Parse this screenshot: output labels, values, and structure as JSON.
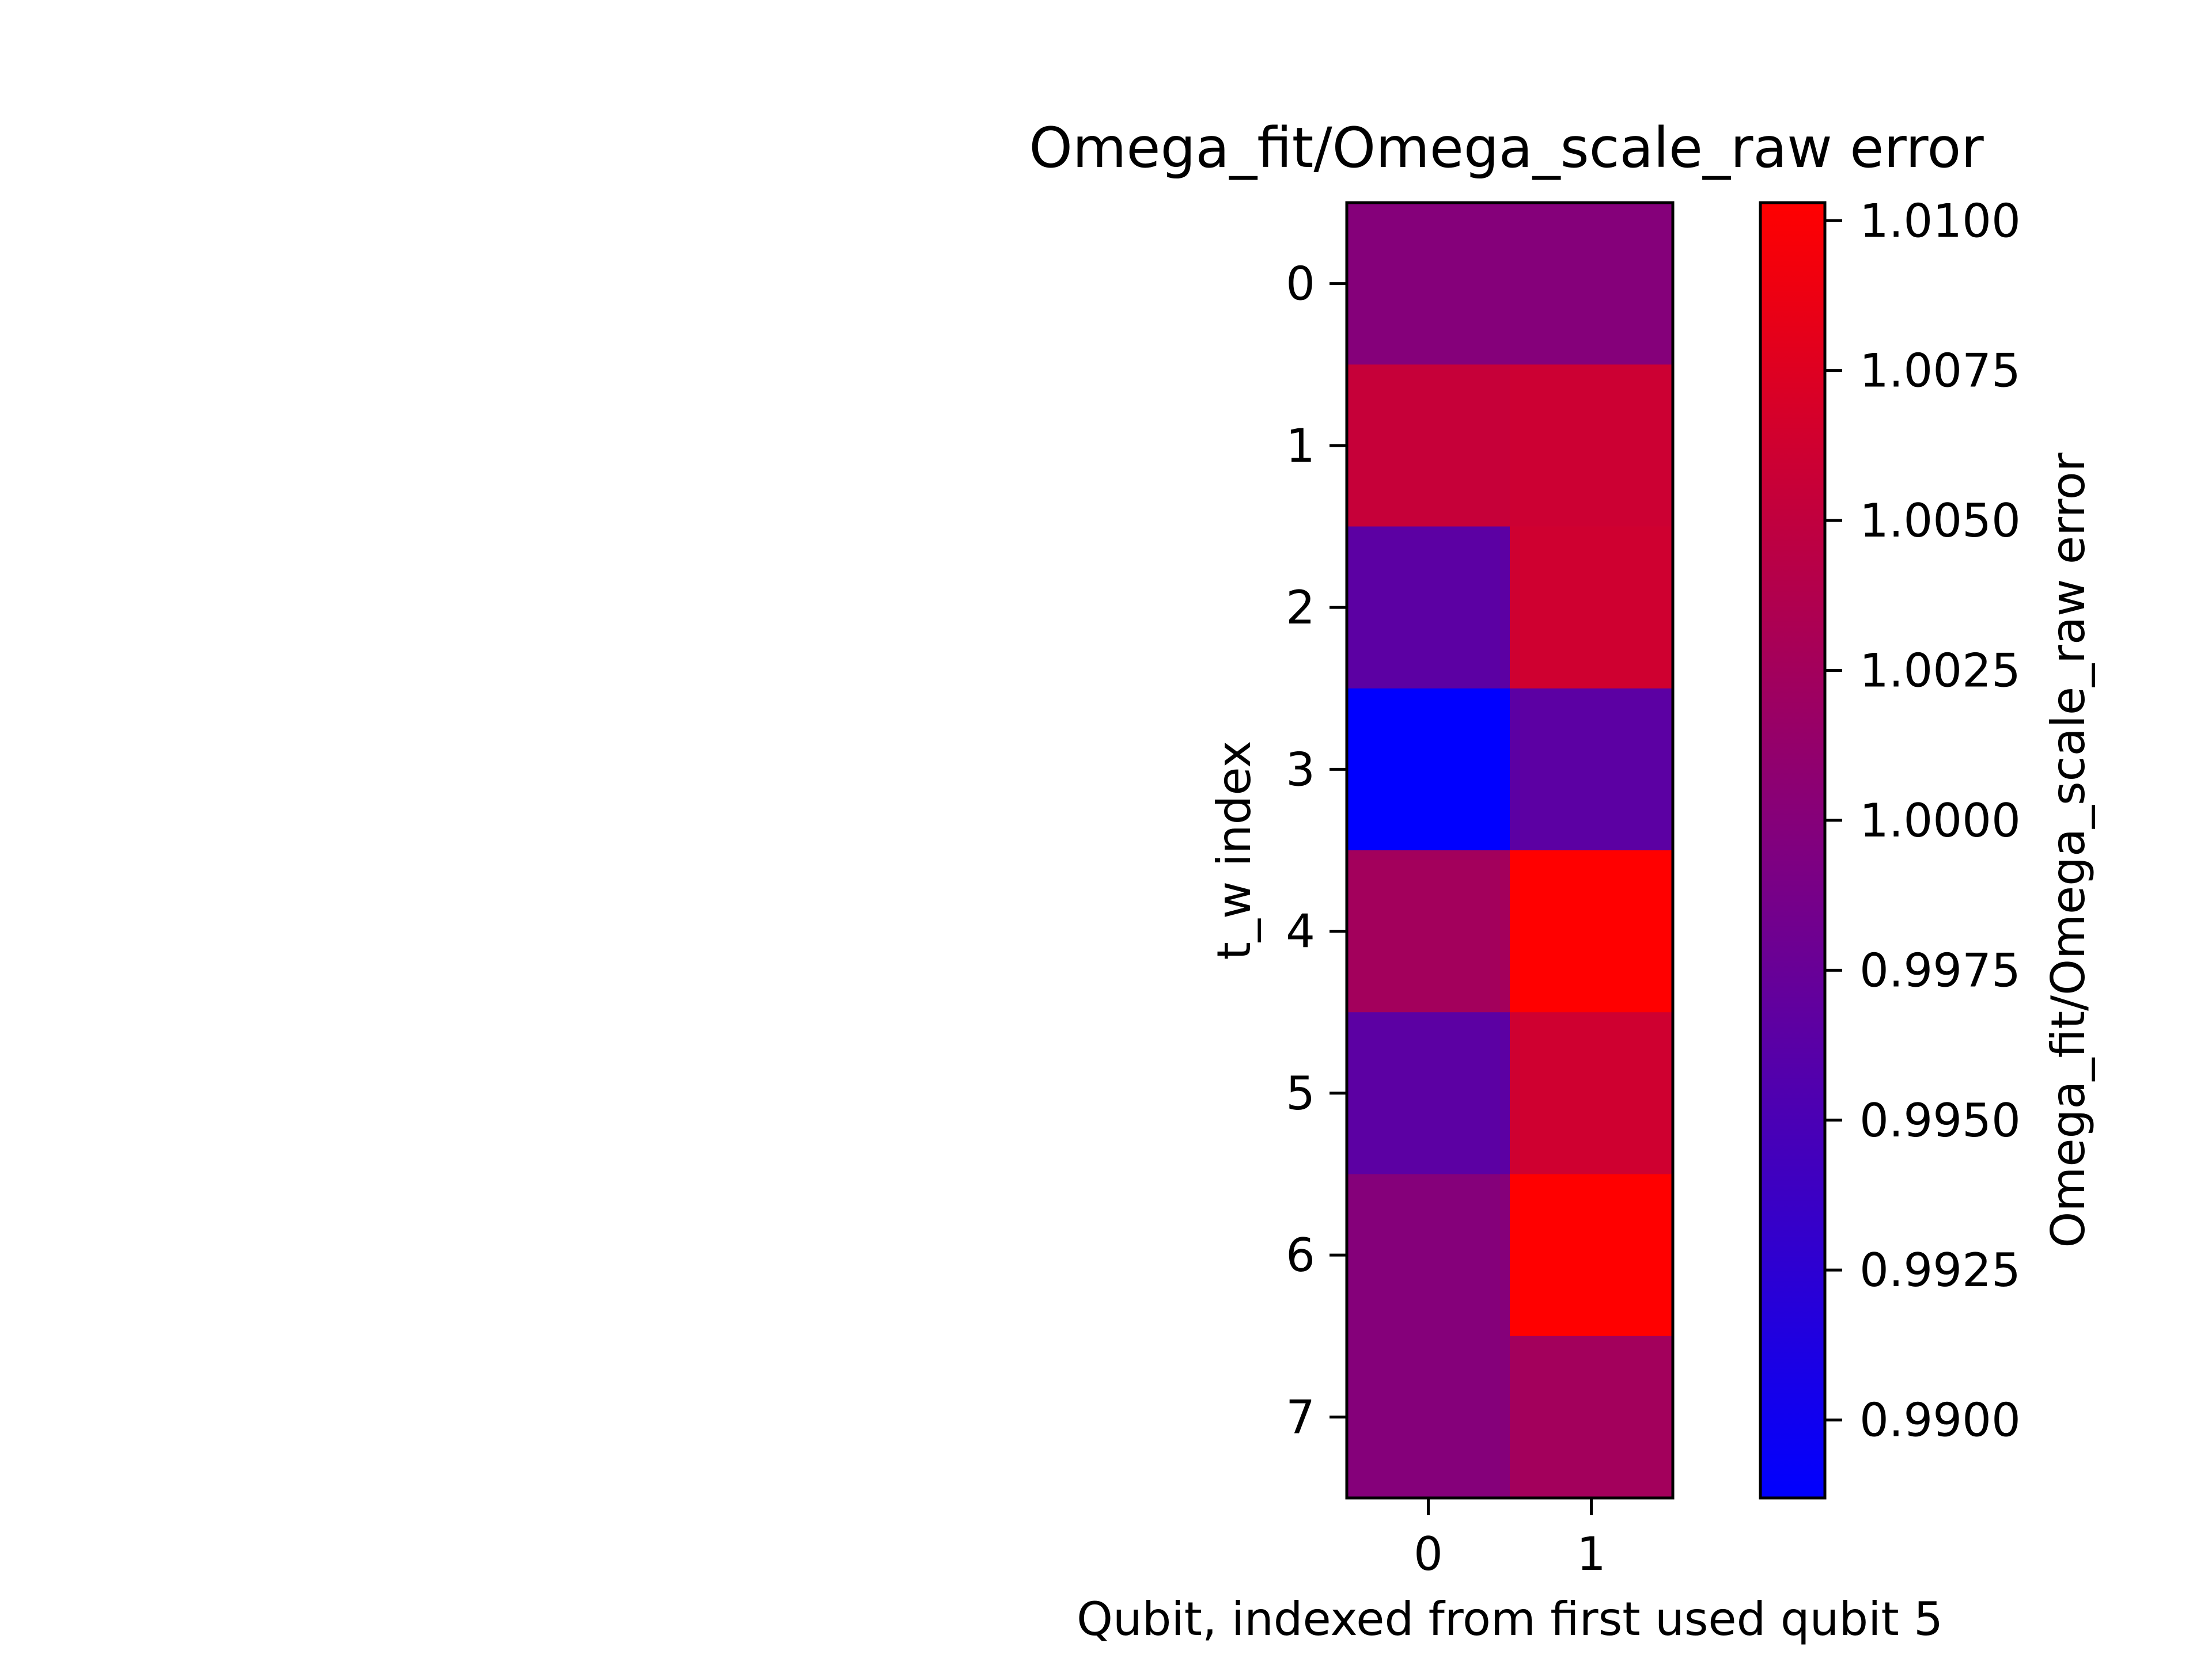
{
  "chart_data": {
    "type": "heatmap",
    "title": "Omega_fit/Omega_scale_raw error",
    "xlabel": "Qubit, indexed from first used qubit 5",
    "ylabel": "t_w index",
    "x_categories": [
      "0",
      "1"
    ],
    "y_categories": [
      "0",
      "1",
      "2",
      "3",
      "4",
      "5",
      "6",
      "7"
    ],
    "values": [
      [
        0.99995,
        0.99995
      ],
      [
        1.0055,
        1.006
      ],
      [
        0.9965,
        1.0062
      ],
      [
        0.9887,
        0.9965
      ],
      [
        1.0025,
        1.0105
      ],
      [
        0.9965,
        1.0062
      ],
      [
        0.99995,
        1.0103
      ],
      [
        0.99995,
        1.0025
      ]
    ],
    "colorbar": {
      "label": "Omega_fit/Omega_scale_raw error",
      "vmin": 0.9887,
      "vmax": 1.0103,
      "ticks": [
        "0.9900",
        "0.9925",
        "0.9950",
        "0.9975",
        "1.0000",
        "1.0025",
        "1.0050",
        "1.0075",
        "1.0100"
      ],
      "colormap": [
        "#0000ff",
        "#ff0000"
      ]
    },
    "grid": false,
    "legend": "none"
  }
}
